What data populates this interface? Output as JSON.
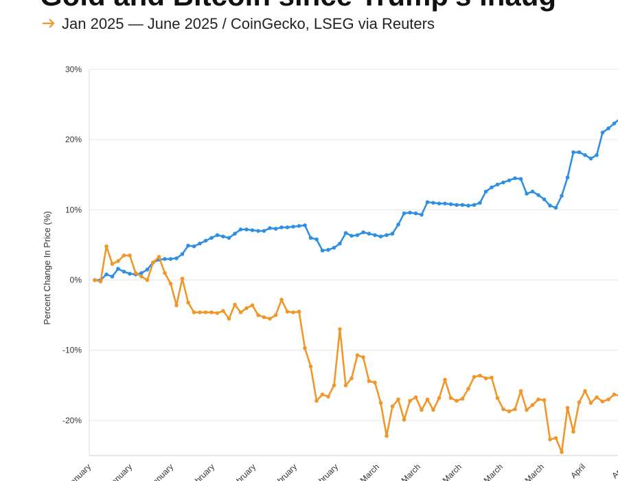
{
  "chart_data": {
    "type": "line",
    "title": "Gold and Bitcoin since Trump's inaug",
    "subtitle": "Jan 2025 — June 2025 / CoinGecko, LSEG via Reuters",
    "y_label": "Percent Change In Price (%)",
    "xtick_labels": [
      "January",
      "January",
      "January",
      "February",
      "February",
      "February",
      "February",
      "March",
      "March",
      "March",
      "March",
      "March",
      "April",
      "April"
    ],
    "ylim": [
      -25,
      30
    ],
    "yticks": [
      {
        "value": -20,
        "label": "-20%"
      },
      {
        "value": -10,
        "label": "-10%"
      },
      {
        "value": 0,
        "label": "0%"
      },
      {
        "value": 10,
        "label": "10%"
      },
      {
        "value": 20,
        "label": "20%"
      },
      {
        "value": 30,
        "label": "30%"
      }
    ],
    "grid": true,
    "series": [
      {
        "color": "#2f8fe3",
        "values": [
          0,
          0,
          0.8,
          0.5,
          1.6,
          1.2,
          0.9,
          0.8,
          1.0,
          1.5,
          2.5,
          2.9,
          3.0,
          3.0,
          3.1,
          3.7,
          4.9,
          4.8,
          5.2,
          5.6,
          6.0,
          6.4,
          6.2,
          6.0,
          6.6,
          7.2,
          7.2,
          7.1,
          7.0,
          7.0,
          7.4,
          7.3,
          7.5,
          7.5,
          7.6,
          7.7,
          7.8,
          6.0,
          5.8,
          4.2,
          4.3,
          4.6,
          5.2,
          6.7,
          6.3,
          6.4,
          6.8,
          6.6,
          6.4,
          6.2,
          6.4,
          6.6,
          7.9,
          9.5,
          9.6,
          9.5,
          9.3,
          11.1,
          11.0,
          10.9,
          10.9,
          10.8,
          10.7,
          10.7,
          10.6,
          10.7,
          11.0,
          12.6,
          13.2,
          13.6,
          13.9,
          14.2,
          14.5,
          14.4,
          12.3,
          12.6,
          12.1,
          11.5,
          10.6,
          10.3,
          12.0,
          14.6,
          18.2,
          18.2,
          17.8,
          17.3,
          17.8,
          21.0,
          21.6,
          22.3,
          23.0
        ]
      },
      {
        "color": "#f0962a",
        "values": [
          0,
          -0.2,
          4.8,
          2.3,
          2.7,
          3.5,
          3.5,
          1.0,
          0.5,
          0.0,
          2.5,
          3.3,
          1.0,
          -0.5,
          -3.6,
          0.2,
          -3.2,
          -4.6,
          -4.6,
          -4.6,
          -4.6,
          -4.7,
          -4.4,
          -5.5,
          -3.5,
          -4.6,
          -4.0,
          -3.6,
          -5.0,
          -5.3,
          -5.5,
          -5.0,
          -2.8,
          -4.5,
          -4.6,
          -4.5,
          -9.7,
          -12.3,
          -17.2,
          -16.3,
          -16.6,
          -15.0,
          -7.0,
          -15.0,
          -14.0,
          -10.7,
          -11.0,
          -14.4,
          -14.6,
          -17.5,
          -22.2,
          -18.0,
          -17.0,
          -19.9,
          -17.2,
          -16.7,
          -18.5,
          -17.0,
          -18.5,
          -16.8,
          -14.2,
          -16.8,
          -17.2,
          -16.9,
          -15.5,
          -13.8,
          -13.6,
          -14.0,
          -13.9,
          -16.8,
          -18.4,
          -18.7,
          -18.4,
          -15.8,
          -18.5,
          -17.8,
          -17.0,
          -17.1,
          -22.7,
          -22.5,
          -24.5,
          -18.2,
          -21.6,
          -17.4,
          -15.8,
          -17.5,
          -16.7,
          -17.3,
          -17.0,
          -16.3,
          -16.5
        ]
      }
    ]
  }
}
